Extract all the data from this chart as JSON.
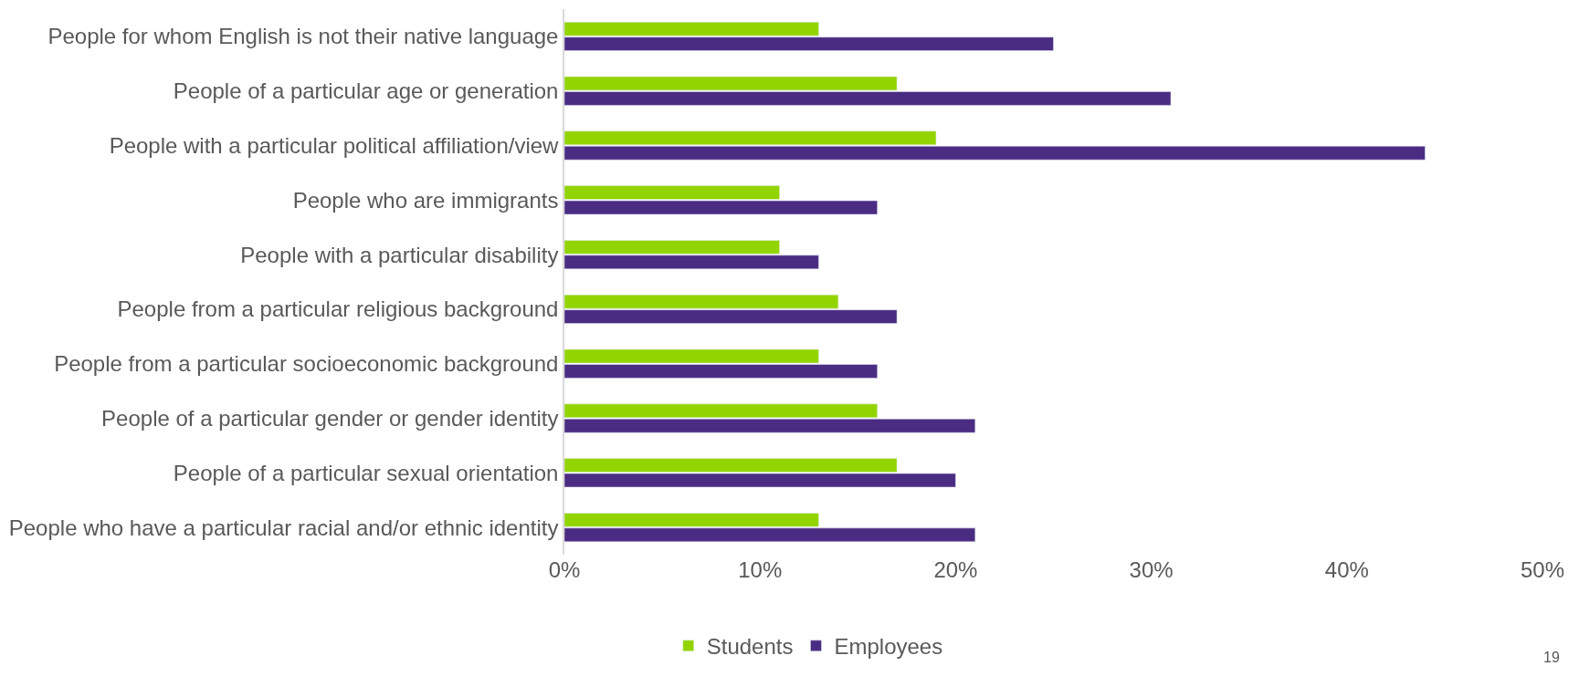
{
  "chart_data": {
    "type": "bar",
    "orientation": "horizontal",
    "categories": [
      "People for whom English is not their native language",
      "People of a particular age or generation",
      "People with a particular political affiliation/view",
      "People who are immigrants",
      "People with a particular disability",
      "People from a particular religious background",
      "People from a particular socioeconomic background",
      "People of a particular gender or gender identity",
      "People of a particular sexual orientation",
      "People who have a particular racial and/or ethnic identity"
    ],
    "series": [
      {
        "name": "Students",
        "color": "#92d400",
        "values": [
          13,
          17,
          19,
          11,
          11,
          14,
          13,
          16,
          17,
          13
        ]
      },
      {
        "name": "Employees",
        "color": "#4b2c83",
        "values": [
          25,
          31,
          44,
          16,
          13,
          17,
          16,
          21,
          20,
          21
        ]
      }
    ],
    "xlim": [
      0,
      50
    ],
    "xticks": [
      {
        "value": 0,
        "label": "0%"
      },
      {
        "value": 10,
        "label": "10%"
      },
      {
        "value": 20,
        "label": "20%"
      },
      {
        "value": 30,
        "label": "30%"
      },
      {
        "value": 40,
        "label": "40%"
      },
      {
        "value": 50,
        "label": "50%"
      }
    ],
    "legend": "bottom",
    "annotations": [
      "19"
    ]
  }
}
